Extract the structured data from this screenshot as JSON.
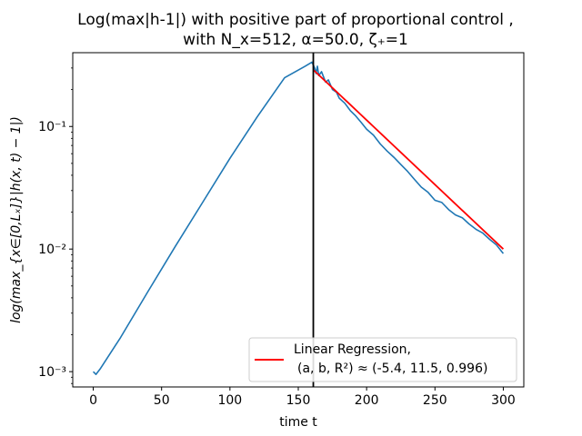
{
  "chart_data": {
    "type": "line",
    "title_line1": "Log(max|h-1|) with  positive part of proportional control ,",
    "title_line2": "with N_x=512, α=50.0, ζ₊=1",
    "xlabel": "time t",
    "ylabel": "log(max_{x∈[0,Lₓ]}|h(x, t) − 1|)",
    "yscale": "log",
    "xlim": [
      -15,
      315
    ],
    "ylim": [
      0.00075,
      0.4
    ],
    "xticks": [
      0,
      50,
      100,
      150,
      200,
      250,
      300
    ],
    "xtick_labels": [
      "0",
      "50",
      "100",
      "150",
      "200",
      "250",
      "300"
    ],
    "yticks": [
      0.001,
      0.01,
      0.1
    ],
    "ytick_labels": [
      "10⁻³",
      "10⁻²",
      "10⁻¹"
    ],
    "vline_x": 161,
    "grid": false,
    "legend_position": "lower-right",
    "series": [
      {
        "name": "",
        "color": "#1f77b4",
        "x": [
          0,
          2,
          5,
          20,
          40,
          60,
          80,
          100,
          120,
          140,
          155,
          160,
          162,
          163,
          164,
          165,
          167,
          170,
          172,
          175,
          178,
          180,
          184,
          188,
          192,
          196,
          200,
          205,
          210,
          215,
          220,
          225,
          230,
          235,
          240,
          245,
          250,
          255,
          260,
          265,
          270,
          275,
          280,
          285,
          290,
          295,
          298,
          300
        ],
        "y": [
          0.001,
          0.00095,
          0.00105,
          0.0019,
          0.0045,
          0.0105,
          0.024,
          0.055,
          0.12,
          0.25,
          0.31,
          0.335,
          0.3,
          0.27,
          0.31,
          0.26,
          0.28,
          0.23,
          0.24,
          0.2,
          0.19,
          0.17,
          0.155,
          0.135,
          0.122,
          0.108,
          0.095,
          0.085,
          0.072,
          0.063,
          0.056,
          0.049,
          0.043,
          0.037,
          0.032,
          0.029,
          0.025,
          0.024,
          0.021,
          0.019,
          0.018,
          0.016,
          0.0145,
          0.0135,
          0.012,
          0.0108,
          0.0098,
          0.0092
        ]
      },
      {
        "name": "Linear Regression,",
        "name_line2": "(a, b, R²) ≈ (-5.4, 11.5, 0.996)",
        "color": "#ff0000",
        "x": [
          161,
          300
        ],
        "y": [
          0.29,
          0.01
        ]
      }
    ]
  }
}
